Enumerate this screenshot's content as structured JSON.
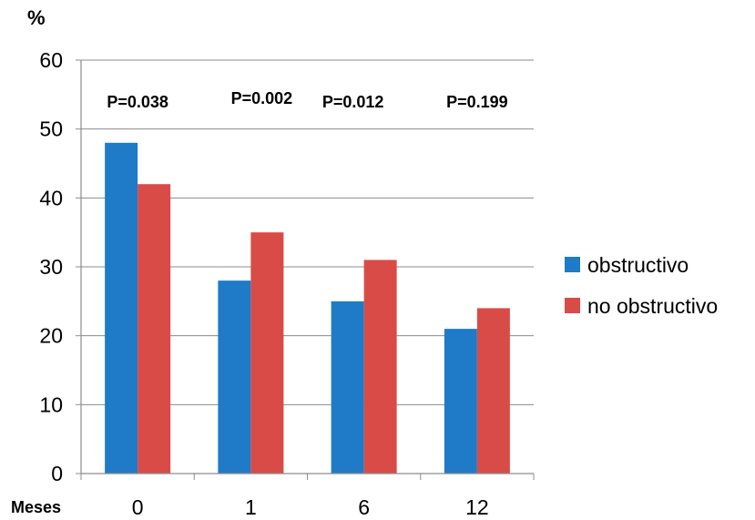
{
  "chart_data": {
    "type": "bar",
    "ylabel": "%",
    "xlabel": "Meses",
    "categories": [
      "0",
      "1",
      "6",
      "12"
    ],
    "series": [
      {
        "name": "obstructivo",
        "color": "#1f7bc7",
        "values": [
          48,
          28,
          25,
          21
        ]
      },
      {
        "name": "no obstructivo",
        "color": "#d94b47",
        "values": [
          42,
          35,
          31,
          24
        ]
      }
    ],
    "ylim": [
      0,
      60
    ],
    "yticks": [
      "0",
      "10",
      "20",
      "30",
      "40",
      "50",
      "60"
    ],
    "annotations": [
      "P=0.038",
      "P=0.002",
      "P=0.012",
      "P=0.199"
    ],
    "grid": true,
    "legend_position": "right"
  }
}
